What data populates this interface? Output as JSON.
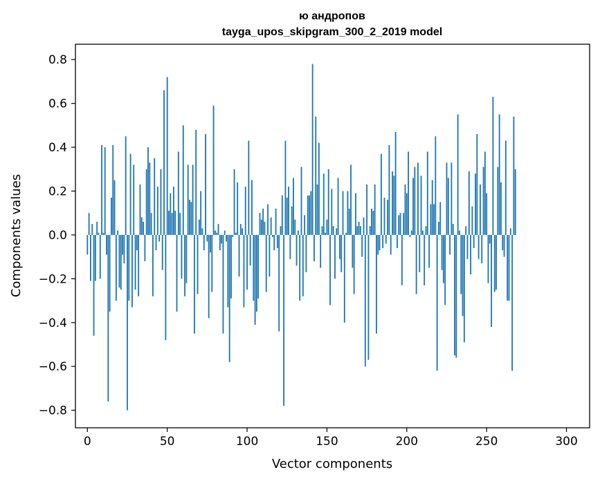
{
  "chart_data": {
    "type": "bar",
    "title": "ю андропов",
    "subtitle": "tayga_upos_skipgram_300_2_2019 model",
    "xlabel": "Vector components",
    "ylabel": "Components values",
    "xlim": [
      -7.5,
      314.5
    ],
    "ylim": [
      -0.88,
      0.87
    ],
    "xticks": [
      0,
      50,
      100,
      150,
      200,
      250,
      300
    ],
    "yticks": [
      -0.8,
      -0.6,
      -0.4,
      -0.2,
      0.0,
      0.2,
      0.4,
      0.6,
      0.8
    ],
    "xtick_labels": [
      "0",
      "50",
      "100",
      "150",
      "200",
      "250",
      "300"
    ],
    "ytick_labels": [
      "−0.8",
      "−0.6",
      "−0.4",
      "−0.2",
      "0.0",
      "0.2",
      "0.4",
      "0.6",
      "0.8"
    ],
    "bar_color": "#1f77b4",
    "grid": false,
    "legend": "none",
    "values": [
      -0.09,
      0.1,
      -0.21,
      0.05,
      -0.46,
      -0.21,
      0.06,
      0.01,
      -0.2,
      0.41,
      0.01,
      0.4,
      -0.09,
      -0.76,
      -0.35,
      0.17,
      0.41,
      0.25,
      -0.3,
      0.02,
      -0.24,
      -0.25,
      -0.09,
      -0.13,
      0.45,
      -0.8,
      -0.3,
      0.37,
      -0.33,
      0.32,
      -0.25,
      -0.07,
      -0.28,
      0.23,
      0.08,
      0.06,
      -0.12,
      0.3,
      0.4,
      0.33,
      0.1,
      -0.28,
      0.35,
      -0.07,
      0.22,
      -0.03,
      0.3,
      -0.16,
      0.66,
      -0.48,
      0.72,
      0.11,
      0.19,
      0.1,
      0.22,
      0.11,
      -0.35,
      0.38,
      0.1,
      -0.2,
      0.5,
      -0.28,
      -0.22,
      0.32,
      0.16,
      0.15,
      0.32,
      -0.45,
      0.48,
      -0.27,
      0.07,
      0.2,
      0.03,
      -0.07,
      0.46,
      -0.03,
      -0.38,
      -0.08,
      -0.26,
      0.59,
      0.02,
      0.01,
      0.05,
      -0.07,
      -0.04,
      -0.45,
      0.02,
      -0.03,
      -0.33,
      -0.58,
      -0.29,
      -0.01,
      0.3,
      0.01,
      0.24,
      -0.19,
      0.05,
      0.03,
      -0.33,
      0.22,
      -0.25,
      0.43,
      -0.14,
      0.25,
      -0.3,
      -0.41,
      -0.35,
      -0.29,
      0.1,
      0.07,
      0.12,
      0.06,
      -0.26,
      0.14,
      -0.19,
      0.08,
      -0.01,
      -0.07,
      0.12,
      -0.06,
      -0.44,
      0.04,
      0.18,
      -0.78,
      0.43,
      0.17,
      0.22,
      -0.11,
      0.13,
      0.26,
      0.07,
      -0.14,
      0.02,
      -0.3,
      0.31,
      -0.28,
      0.09,
      -0.17,
      0.18,
      0.18,
      0.2,
      0.78,
      -0.12,
      0.54,
      0.23,
      0.42,
      -0.15,
      0.04,
      0.28,
      0.01,
      0.07,
      0.3,
      -0.32,
      0.21,
      0.04,
      -0.2,
      0.03,
      0.26,
      -0.11,
      -0.17,
      0.2,
      -0.4,
      0.01,
      0.2,
      0.12,
      0.32,
      -0.15,
      -0.27,
      0.19,
      0.04,
      0.06,
      0.04,
      -0.1,
      0.08,
      -0.6,
      0.23,
      -0.57,
      0.04,
      0.12,
      0.11,
      0.23,
      -0.45,
      -0.09,
      -0.07,
      0.37,
      -0.06,
      0.17,
      -0.04,
      0.16,
      0.41,
      -0.09,
      0.29,
      0.27,
      0.47,
      -0.06,
      0.09,
      0.1,
      -0.23,
      0.1,
      0.23,
      0.19,
      0.38,
      -0.01,
      0.02,
      0.26,
      0.31,
      -0.27,
      0.33,
      -0.17,
      0.27,
      0.02,
      -0.23,
      0.04,
      0.38,
      -0.15,
      0.14,
      0.25,
      0.14,
      0.45,
      -0.62,
      0.06,
      0.15,
      -0.16,
      -0.22,
      -0.32,
      0.33,
      0.26,
      -0.09,
      0.33,
      0.05,
      -0.55,
      -0.56,
      0.55,
      0.02,
      -0.27,
      -0.37,
      -0.49,
      0.04,
      -0.11,
      0.29,
      -0.18,
      0.13,
      -0.06,
      0.28,
      0.46,
      -0.11,
      0.23,
      -0.13,
      0.31,
      0.38,
      0.19,
      -0.22,
      -0.04,
      -0.42,
      0.63,
      -0.26,
      -0.25,
      0.31,
      0.55,
      0.24,
      -0.07,
      -0.1,
      0.43,
      -0.3,
      -0.3,
      0.03,
      -0.62,
      0.54,
      0.3
    ]
  }
}
